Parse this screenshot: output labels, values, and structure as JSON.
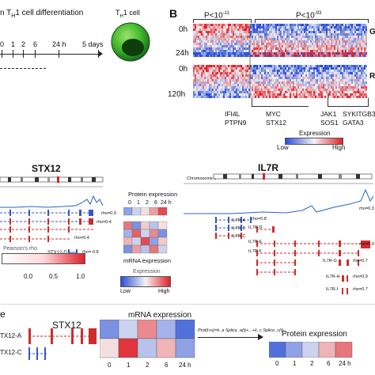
{
  "panel_a": {
    "title_prefix": "n T",
    "title_sub": "H",
    "title_suffix": "1 cell differentiation",
    "cell_label_prefix": "T",
    "cell_label_sub": "H",
    "cell_label_suffix": "1 cell",
    "timepoints": [
      "0",
      "1",
      "2",
      "6",
      "24 h",
      "5 days"
    ]
  },
  "panel_b": {
    "letter": "B",
    "pval_left": "P<10",
    "pval_left_exp": "-11",
    "pval_right": "P<10",
    "pval_right_exp": "-93",
    "rows_top": [
      "0h",
      "24h"
    ],
    "rows_bottom": [
      "0h",
      "120h"
    ],
    "right_letter_1": "G",
    "right_letter_2": "R",
    "genes_col1": [
      "IFI4L",
      "PTPN9"
    ],
    "genes_col2": [
      "MYC",
      "STX12"
    ],
    "genes_col3": [
      "JAK1",
      "SOS1"
    ],
    "genes_col4": [
      "SYK",
      "GATA3"
    ],
    "genes_col5": [
      "ITGB3"
    ],
    "legend_title": "Expression",
    "legend_low": "Low",
    "legend_high": "High",
    "colors": {
      "low": "#2a4fd6",
      "mid": "#f4f4f4",
      "high": "#e0202a"
    }
  },
  "panel_stx12": {
    "gene": "STX12",
    "isoform_d": "STX12-D",
    "rho_values": [
      "rho=0.9",
      "rho=0.4",
      "rho=0.4",
      "rho=-0.8"
    ],
    "scale_title": "Pearson's rho",
    "scale_ticks": [
      "0.0",
      "0.5",
      "1.0"
    ],
    "protein_title": "Protein expression",
    "protein_ticks": [
      "0",
      "1",
      "2",
      "6",
      "24 h"
    ],
    "mrna_title": "mRNA expression",
    "expr_title": "Expression",
    "expr_low": "Low",
    "expr_high": "High"
  },
  "panel_il7r": {
    "gene": "IL7R",
    "chromosome": "Chromosome 5",
    "isoforms": [
      "IL7R-A",
      "IL7R-B",
      "IL7R-C",
      "IL7R-D",
      "IL7R-E",
      "IL7R-F",
      "IL7R-G",
      "IL7R-H",
      "IL7R-I"
    ],
    "rho_values": [
      "rho=0.3",
      "rho=0.8",
      "rho=0.9",
      "rho=0.7",
      "rho=0.9",
      "rho=0.7"
    ]
  },
  "panel_bottom": {
    "letter": "e",
    "gene": "STX12",
    "isoform_a": "TX12-A",
    "isoform_c": "TX12-C",
    "mrna_title": "mRNA expression",
    "mrna_ticks": [
      "0",
      "1",
      "2",
      "6",
      "24 h"
    ],
    "formula": "Prot(t+s)=k_a Splice_a(t)+...+k_c Splice_c(t)",
    "protein_title": "Protein expression",
    "protein_ticks": [
      "0",
      "1",
      "2",
      "6",
      "24 h"
    ]
  }
}
